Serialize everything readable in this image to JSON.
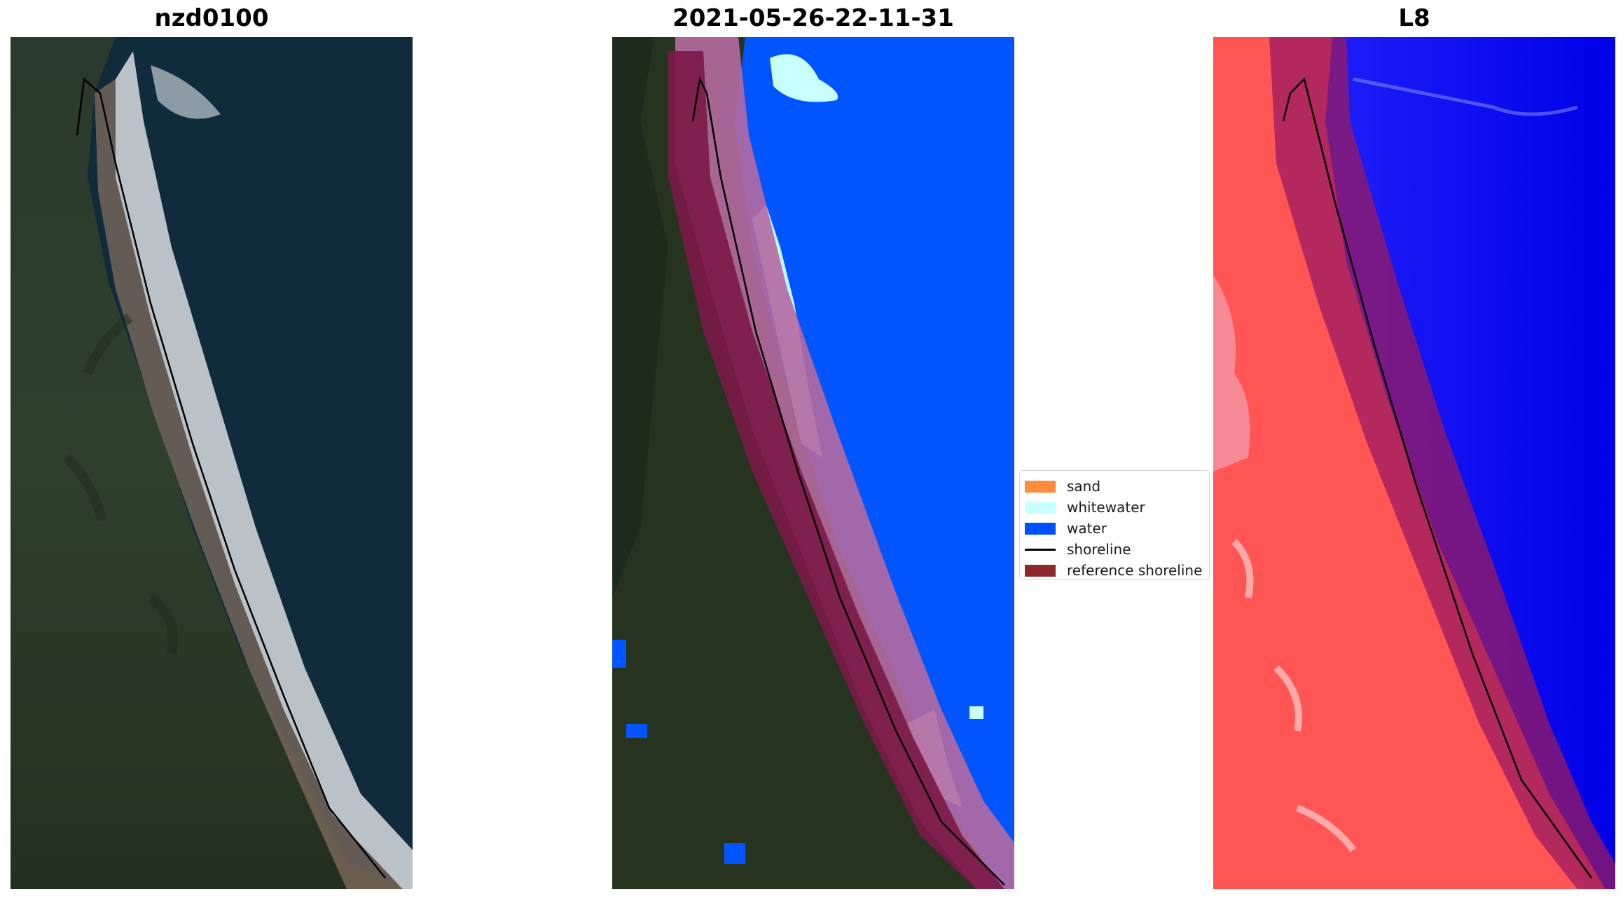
{
  "panels": {
    "left": {
      "title": "nzd0100"
    },
    "middle": {
      "title": "2021-05-26-22-11-31"
    },
    "right": {
      "title": "L8"
    }
  },
  "legend": {
    "items": [
      {
        "label": "sand",
        "color": "#ff8c3a"
      },
      {
        "label": "whitewater",
        "color": "#c8ffff"
      },
      {
        "label": "water",
        "color": "#0050ff"
      },
      {
        "label": "shoreline",
        "color": "#000000"
      },
      {
        "label": "reference shoreline",
        "color": "#8b2a2a"
      }
    ]
  }
}
